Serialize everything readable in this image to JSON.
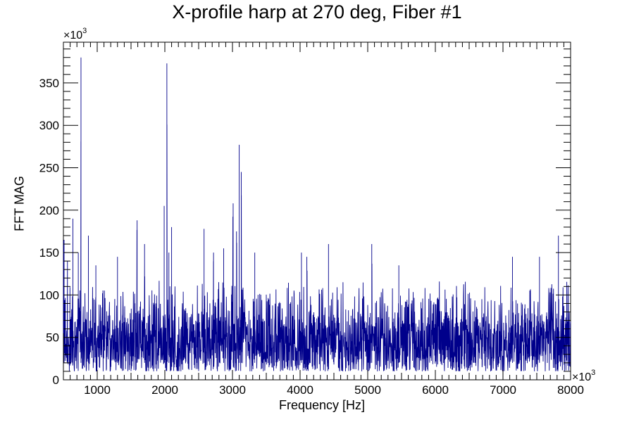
{
  "chart_data": {
    "type": "line",
    "title": "X-profile harp at 270 deg, Fiber #1",
    "xlabel": "Frequency [Hz]",
    "ylabel": "FFT MAG",
    "x_multiplier": "×10",
    "x_multiplier_exp": "3",
    "y_multiplier": "×10",
    "y_multiplier_exp": "3",
    "xlim": [
      500,
      8000
    ],
    "ylim": [
      0,
      398
    ],
    "x_ticks": [
      1000,
      2000,
      3000,
      4000,
      5000,
      6000,
      7000,
      8000
    ],
    "y_ticks": [
      0,
      50,
      100,
      150,
      200,
      250,
      300,
      350
    ],
    "line_color": "#00008b",
    "grid": false,
    "series": [
      {
        "x": [
          510,
          560,
          600,
          640,
          680,
          720,
          760,
          790,
          820,
          870,
          920,
          980,
          1040,
          1100,
          1160,
          1220,
          1300,
          1380,
          1450,
          1520,
          1590,
          1640,
          1700,
          1770,
          1850,
          1920,
          1990,
          2030,
          2060,
          2100,
          2150,
          2220,
          2300,
          2380,
          2450,
          2520,
          2580,
          2650,
          2720,
          2800,
          2870,
          2940,
          3010,
          3060,
          3100,
          3130,
          3180,
          3250,
          3330,
          3400,
          3480,
          3550,
          3620,
          3700,
          3780,
          3860,
          3940,
          4020,
          4060,
          4100,
          4180,
          4260,
          4340,
          4420,
          4500,
          4580,
          4660,
          4740,
          4820,
          4900,
          4980,
          5060,
          5140,
          5220,
          5300,
          5380,
          5460,
          5540,
          5620,
          5700,
          5780,
          5860,
          5940,
          6020,
          6100,
          6180,
          6260,
          6340,
          6420,
          6500,
          6580,
          6660,
          6740,
          6820,
          6900,
          6980,
          7060,
          7140,
          7220,
          7300,
          7380,
          7460,
          7540,
          7620,
          7700,
          7780,
          7820,
          7860,
          7920,
          7980
        ],
        "y": [
          165,
          140,
          110,
          190,
          95,
          150,
          380,
          120,
          105,
          170,
          90,
          135,
          110,
          120,
          90,
          100,
          145,
          110,
          95,
          125,
          188,
          100,
          160,
          110,
          120,
          100,
          205,
          373,
          150,
          180,
          120,
          95,
          110,
          85,
          120,
          100,
          178,
          110,
          150,
          120,
          155,
          110,
          208,
          175,
          277,
          245,
          120,
          105,
          150,
          110,
          95,
          120,
          100,
          105,
          120,
          95,
          110,
          150,
          105,
          145,
          95,
          110,
          100,
          160,
          95,
          110,
          100,
          120,
          90,
          110,
          100,
          160,
          95,
          120,
          100,
          110,
          135,
          100,
          90,
          105,
          110,
          95,
          100,
          110,
          95,
          120,
          110,
          100,
          125,
          95,
          110,
          105,
          120,
          90,
          110,
          100,
          95,
          145,
          100,
          90,
          110,
          100,
          145,
          95,
          110,
          100,
          170,
          100,
          90,
          97
        ]
      }
    ]
  }
}
